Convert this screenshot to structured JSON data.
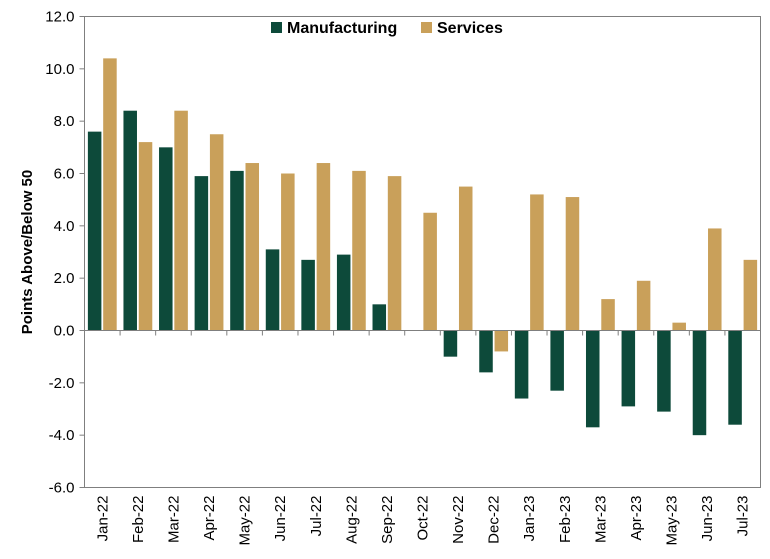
{
  "chart_data": {
    "type": "bar",
    "title": "",
    "xlabel": "",
    "ylabel": "Points Above/Below 50",
    "ylim": [
      -6.0,
      12.0
    ],
    "yticks": [
      "12.0",
      "10.0",
      "8.0",
      "6.0",
      "4.0",
      "2.0",
      "0.0",
      "-2.0",
      "-4.0",
      "-6.0"
    ],
    "ytick_values": [
      12,
      10,
      8,
      6,
      4,
      2,
      0,
      -2,
      -4,
      -6
    ],
    "categories": [
      "Jan-22",
      "Feb-22",
      "Mar-22",
      "Apr-22",
      "May-22",
      "Jun-22",
      "Jul-22",
      "Aug-22",
      "Sep-22",
      "Oct-22",
      "Nov-22",
      "Dec-22",
      "Jan-23",
      "Feb-23",
      "Mar-23",
      "Apr-23",
      "May-23",
      "Jun-23",
      "Jul-23"
    ],
    "legend_position": "top-center",
    "grid": false,
    "series": [
      {
        "name": "Manufacturing",
        "color": "#0d4a3a",
        "values": [
          7.6,
          8.4,
          7.0,
          5.9,
          6.1,
          3.1,
          2.7,
          2.9,
          1.0,
          0.0,
          -1.0,
          -1.6,
          -2.6,
          -2.3,
          -3.7,
          -2.9,
          -3.1,
          -4.0,
          -3.6
        ]
      },
      {
        "name": "Services",
        "color": "#c9a05a",
        "values": [
          10.4,
          7.2,
          8.4,
          7.5,
          6.4,
          6.0,
          6.4,
          6.1,
          5.9,
          4.5,
          5.5,
          -0.8,
          5.2,
          5.1,
          1.2,
          1.9,
          0.3,
          3.9,
          2.7
        ]
      }
    ]
  }
}
